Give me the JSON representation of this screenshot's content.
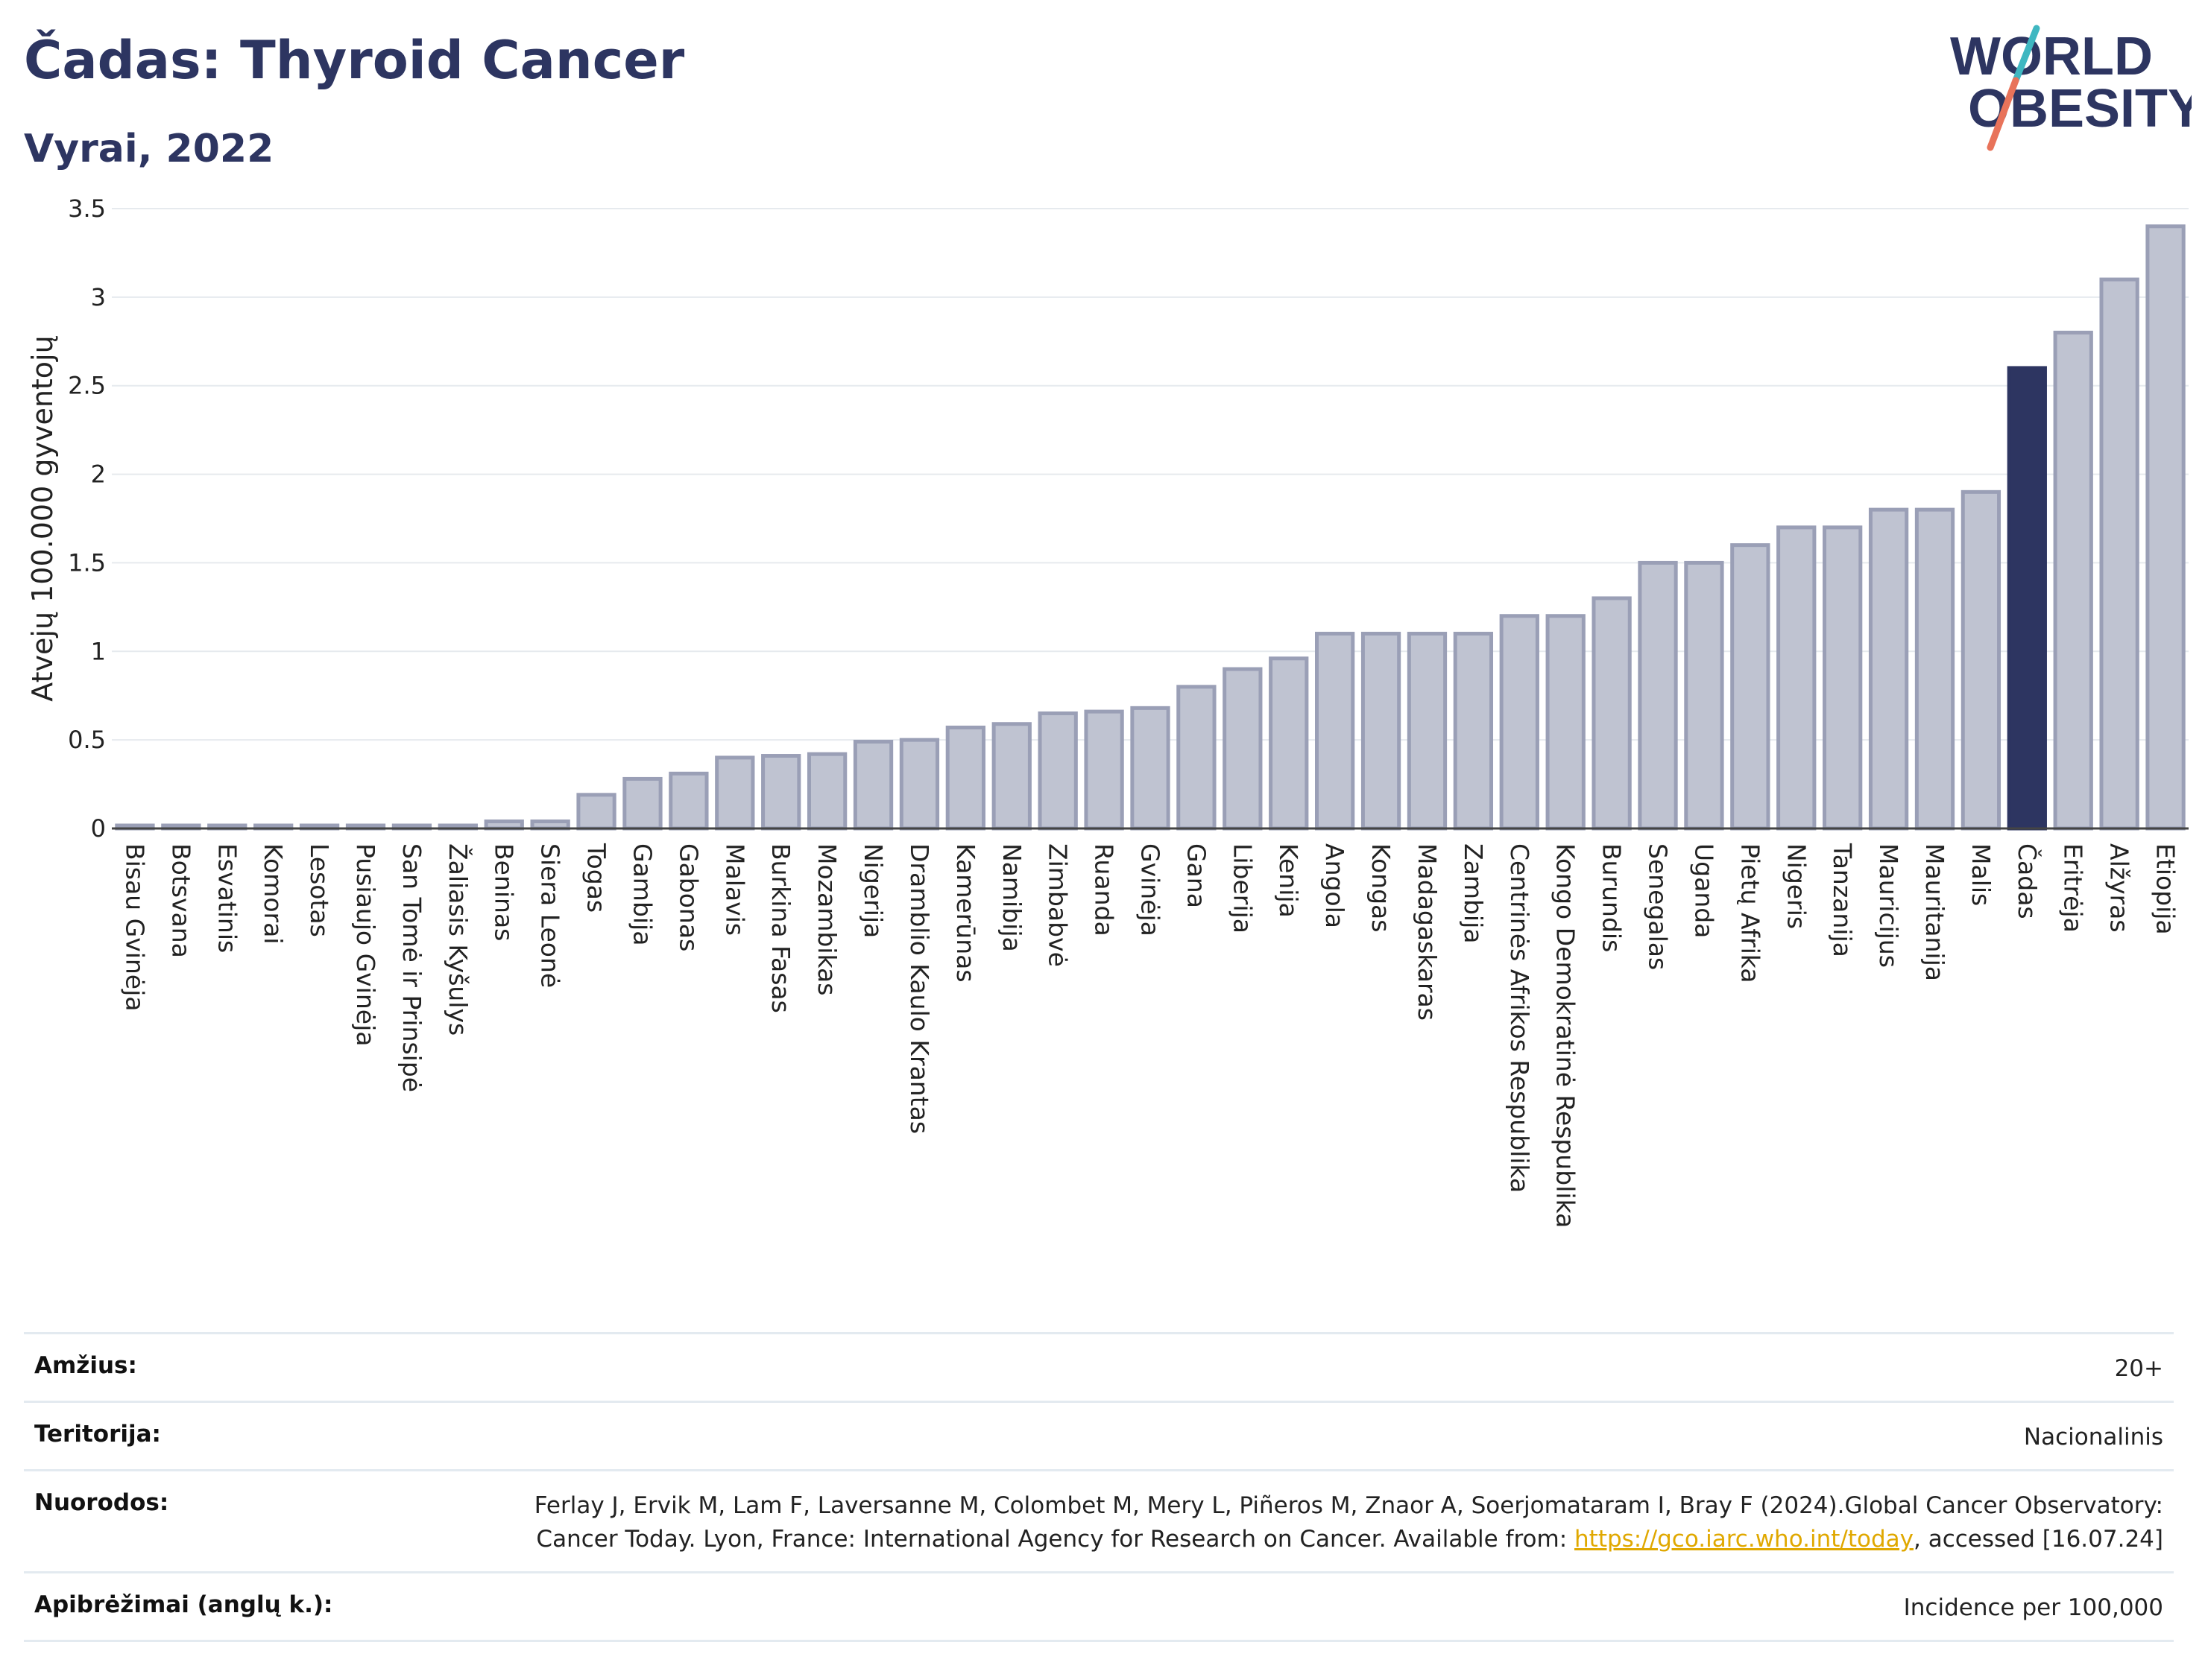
{
  "header": {
    "title": "Čadas: Thyroid Cancer",
    "subtitle": "Vyrai, 2022"
  },
  "logo": {
    "line1": "WORLD",
    "line2": "OBESITY",
    "colors": {
      "text": "#2d3561",
      "slash_top": "#3fb7c1",
      "slash_bottom": "#e8735a"
    }
  },
  "colors": {
    "bar": "#bfc3d1",
    "bar_border": "#9a9fb6",
    "highlight": "#2d3561",
    "axis_text": "#222222",
    "grid": "#e6eaee"
  },
  "chart_data": {
    "type": "bar",
    "ylabel": "Atvejų 100.000 gyventojų",
    "ylim": [
      0,
      3.5
    ],
    "yticks": [
      0,
      0.5,
      1,
      1.5,
      2,
      2.5,
      3,
      3.5
    ],
    "ytick_labels": [
      "0",
      "0.5",
      "1",
      "1.5",
      "2",
      "2.5",
      "3",
      "3.5"
    ],
    "highlight": "Čadas",
    "categories": [
      "Bisau Gvinėja",
      "Botsvana",
      "Esvatinis",
      "Komorai",
      "Lesotas",
      "Pusiaujo Gvinėja",
      "San Tomė ir Prinsipė",
      "Žaliasis Kyšulys",
      "Beninas",
      "Siera Leonė",
      "Togas",
      "Gambija",
      "Gabonas",
      "Malavis",
      "Burkina Fasas",
      "Mozambikas",
      "Nigerija",
      "Dramblio Kaulo Krantas",
      "Kamerūnas",
      "Namibija",
      "Zimbabvė",
      "Ruanda",
      "Gvinėja",
      "Gana",
      "Liberija",
      "Kenija",
      "Angola",
      "Kongas",
      "Madagaskaras",
      "Zambija",
      "Centrinės Afrikos Respublika",
      "Kongo Demokratinė Respublika",
      "Burundis",
      "Senegalas",
      "Uganda",
      "Pietų Afrika",
      "Nigeris",
      "Tanzanija",
      "Mauricijus",
      "Mauritanija",
      "Malis",
      "Čadas",
      "Eritrėja",
      "Alžyras",
      "Etiopija"
    ],
    "values": [
      0,
      0,
      0,
      0,
      0,
      0,
      0,
      0,
      0.04,
      0.04,
      0.19,
      0.28,
      0.31,
      0.4,
      0.41,
      0.42,
      0.49,
      0.5,
      0.57,
      0.59,
      0.65,
      0.66,
      0.68,
      0.8,
      0.9,
      0.96,
      1.1,
      1.1,
      1.1,
      1.1,
      1.2,
      1.2,
      1.3,
      1.5,
      1.5,
      1.6,
      1.7,
      1.7,
      1.8,
      1.8,
      1.9,
      2.6,
      2.8,
      3.1,
      3.4
    ]
  },
  "meta": {
    "age_label": "Amžius:",
    "age_value": "20+",
    "territory_label": "Teritorija:",
    "territory_value": "Nacionalinis",
    "refs_label": "Nuorodos:",
    "refs_text_1": "Ferlay J, Ervik M, Lam F, Laversanne M, Colombet M, Mery L, Piñeros M, Znaor A, Soerjomataram I, Bray F (2024).Global Cancer Observatory: Cancer Today. Lyon, France: International Agency for Research on Cancer. Available from: ",
    "refs_link": "https://gco.iarc.who.int/today",
    "refs_text_2": ", accessed [16.07.24]",
    "defs_label": "Apibrėžimai (anglų k.):",
    "defs_value": "Incidence per 100,000"
  }
}
